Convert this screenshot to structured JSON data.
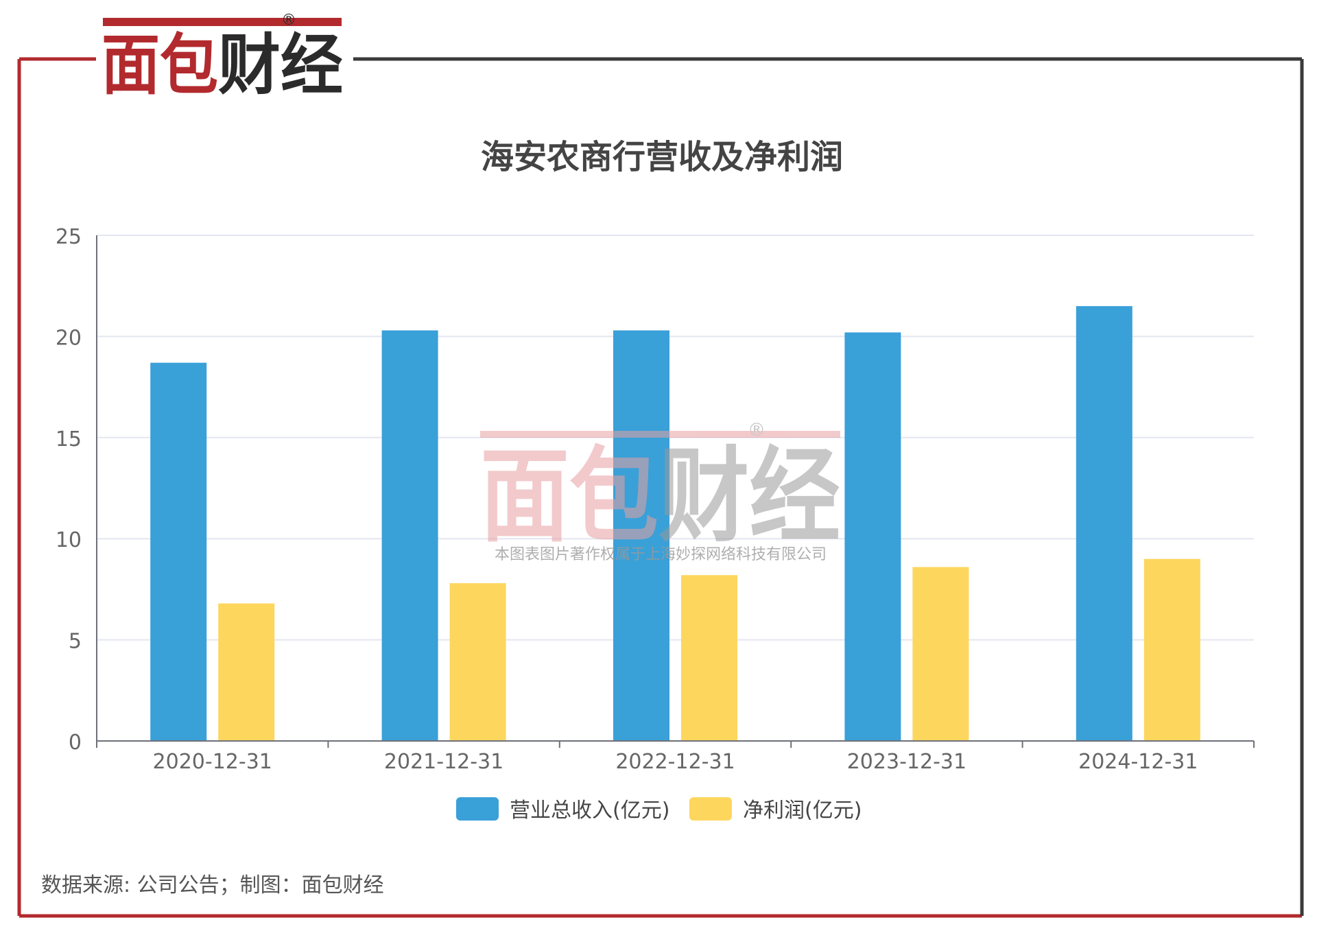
{
  "brand": {
    "logo_text": "面包财经",
    "registered_mark": "®",
    "color_red": "#b22a2e",
    "color_dark": "#2b2b2b"
  },
  "watermark": {
    "logo_text": "面包财经",
    "registered_mark": "®",
    "copyright": "本图表图片著作权属于上海妙探网络科技有限公司"
  },
  "frame_colors": {
    "top_left_red": "#b22a2e",
    "border_dark": "#3a3a3a"
  },
  "footer": {
    "source": "数据来源: 公司公告；制图：面包财经"
  },
  "chart_data": {
    "type": "bar",
    "title": "海安农商行营收及净利润",
    "categories": [
      "2020-12-31",
      "2021-12-31",
      "2022-12-31",
      "2023-12-31",
      "2024-12-31"
    ],
    "series": [
      {
        "name": "营业总收入(亿元)",
        "color": "#3aa0d8",
        "values": [
          18.7,
          20.3,
          20.3,
          20.2,
          21.5
        ]
      },
      {
        "name": "净利润(亿元)",
        "color": "#fdd65e",
        "values": [
          6.8,
          7.8,
          8.2,
          8.6,
          9.0
        ]
      }
    ],
    "ylim": [
      0,
      25
    ],
    "yticks": [
      "0",
      "5",
      "10",
      "15",
      "20",
      "25"
    ],
    "grid": true,
    "legend_position": "bottom"
  }
}
